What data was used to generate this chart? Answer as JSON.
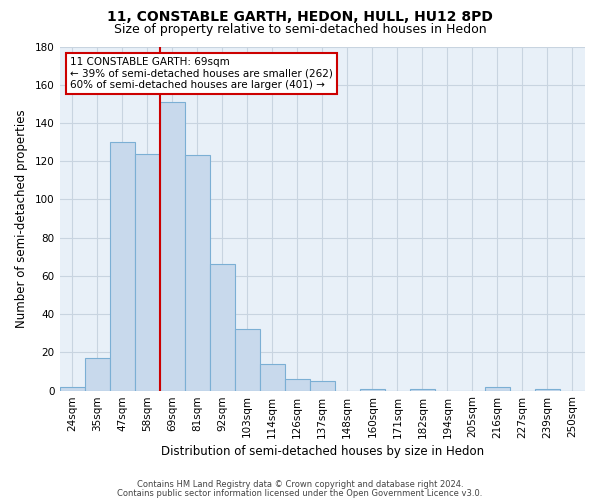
{
  "title": "11, CONSTABLE GARTH, HEDON, HULL, HU12 8PD",
  "subtitle": "Size of property relative to semi-detached houses in Hedon",
  "xlabel": "Distribution of semi-detached houses by size in Hedon",
  "ylabel": "Number of semi-detached properties",
  "categories": [
    "24sqm",
    "35sqm",
    "47sqm",
    "58sqm",
    "69sqm",
    "81sqm",
    "92sqm",
    "103sqm",
    "114sqm",
    "126sqm",
    "137sqm",
    "148sqm",
    "160sqm",
    "171sqm",
    "182sqm",
    "194sqm",
    "205sqm",
    "216sqm",
    "227sqm",
    "239sqm",
    "250sqm"
  ],
  "values": [
    2,
    17,
    130,
    124,
    151,
    123,
    66,
    32,
    14,
    6,
    5,
    0,
    1,
    0,
    1,
    0,
    0,
    2,
    0,
    1,
    0
  ],
  "bar_color": "#c8d9ec",
  "bar_edge_color": "#7bafd4",
  "highlight_index": 4,
  "highlight_line_color": "#cc0000",
  "annotation_title": "11 CONSTABLE GARTH: 69sqm",
  "annotation_line1": "← 39% of semi-detached houses are smaller (262)",
  "annotation_line2": "60% of semi-detached houses are larger (401) →",
  "annotation_box_color": "#ffffff",
  "annotation_box_edge": "#cc0000",
  "ylim": [
    0,
    180
  ],
  "yticks": [
    0,
    20,
    40,
    60,
    80,
    100,
    120,
    140,
    160,
    180
  ],
  "footer1": "Contains HM Land Registry data © Crown copyright and database right 2024.",
  "footer2": "Contains public sector information licensed under the Open Government Licence v3.0.",
  "bg_color": "#ffffff",
  "ax_bg_color": "#e8f0f8",
  "grid_color": "#c8d4e0",
  "title_fontsize": 10,
  "subtitle_fontsize": 9,
  "axis_label_fontsize": 8.5,
  "tick_fontsize": 7.5,
  "annotation_fontsize": 7.5,
  "footer_fontsize": 6.0
}
